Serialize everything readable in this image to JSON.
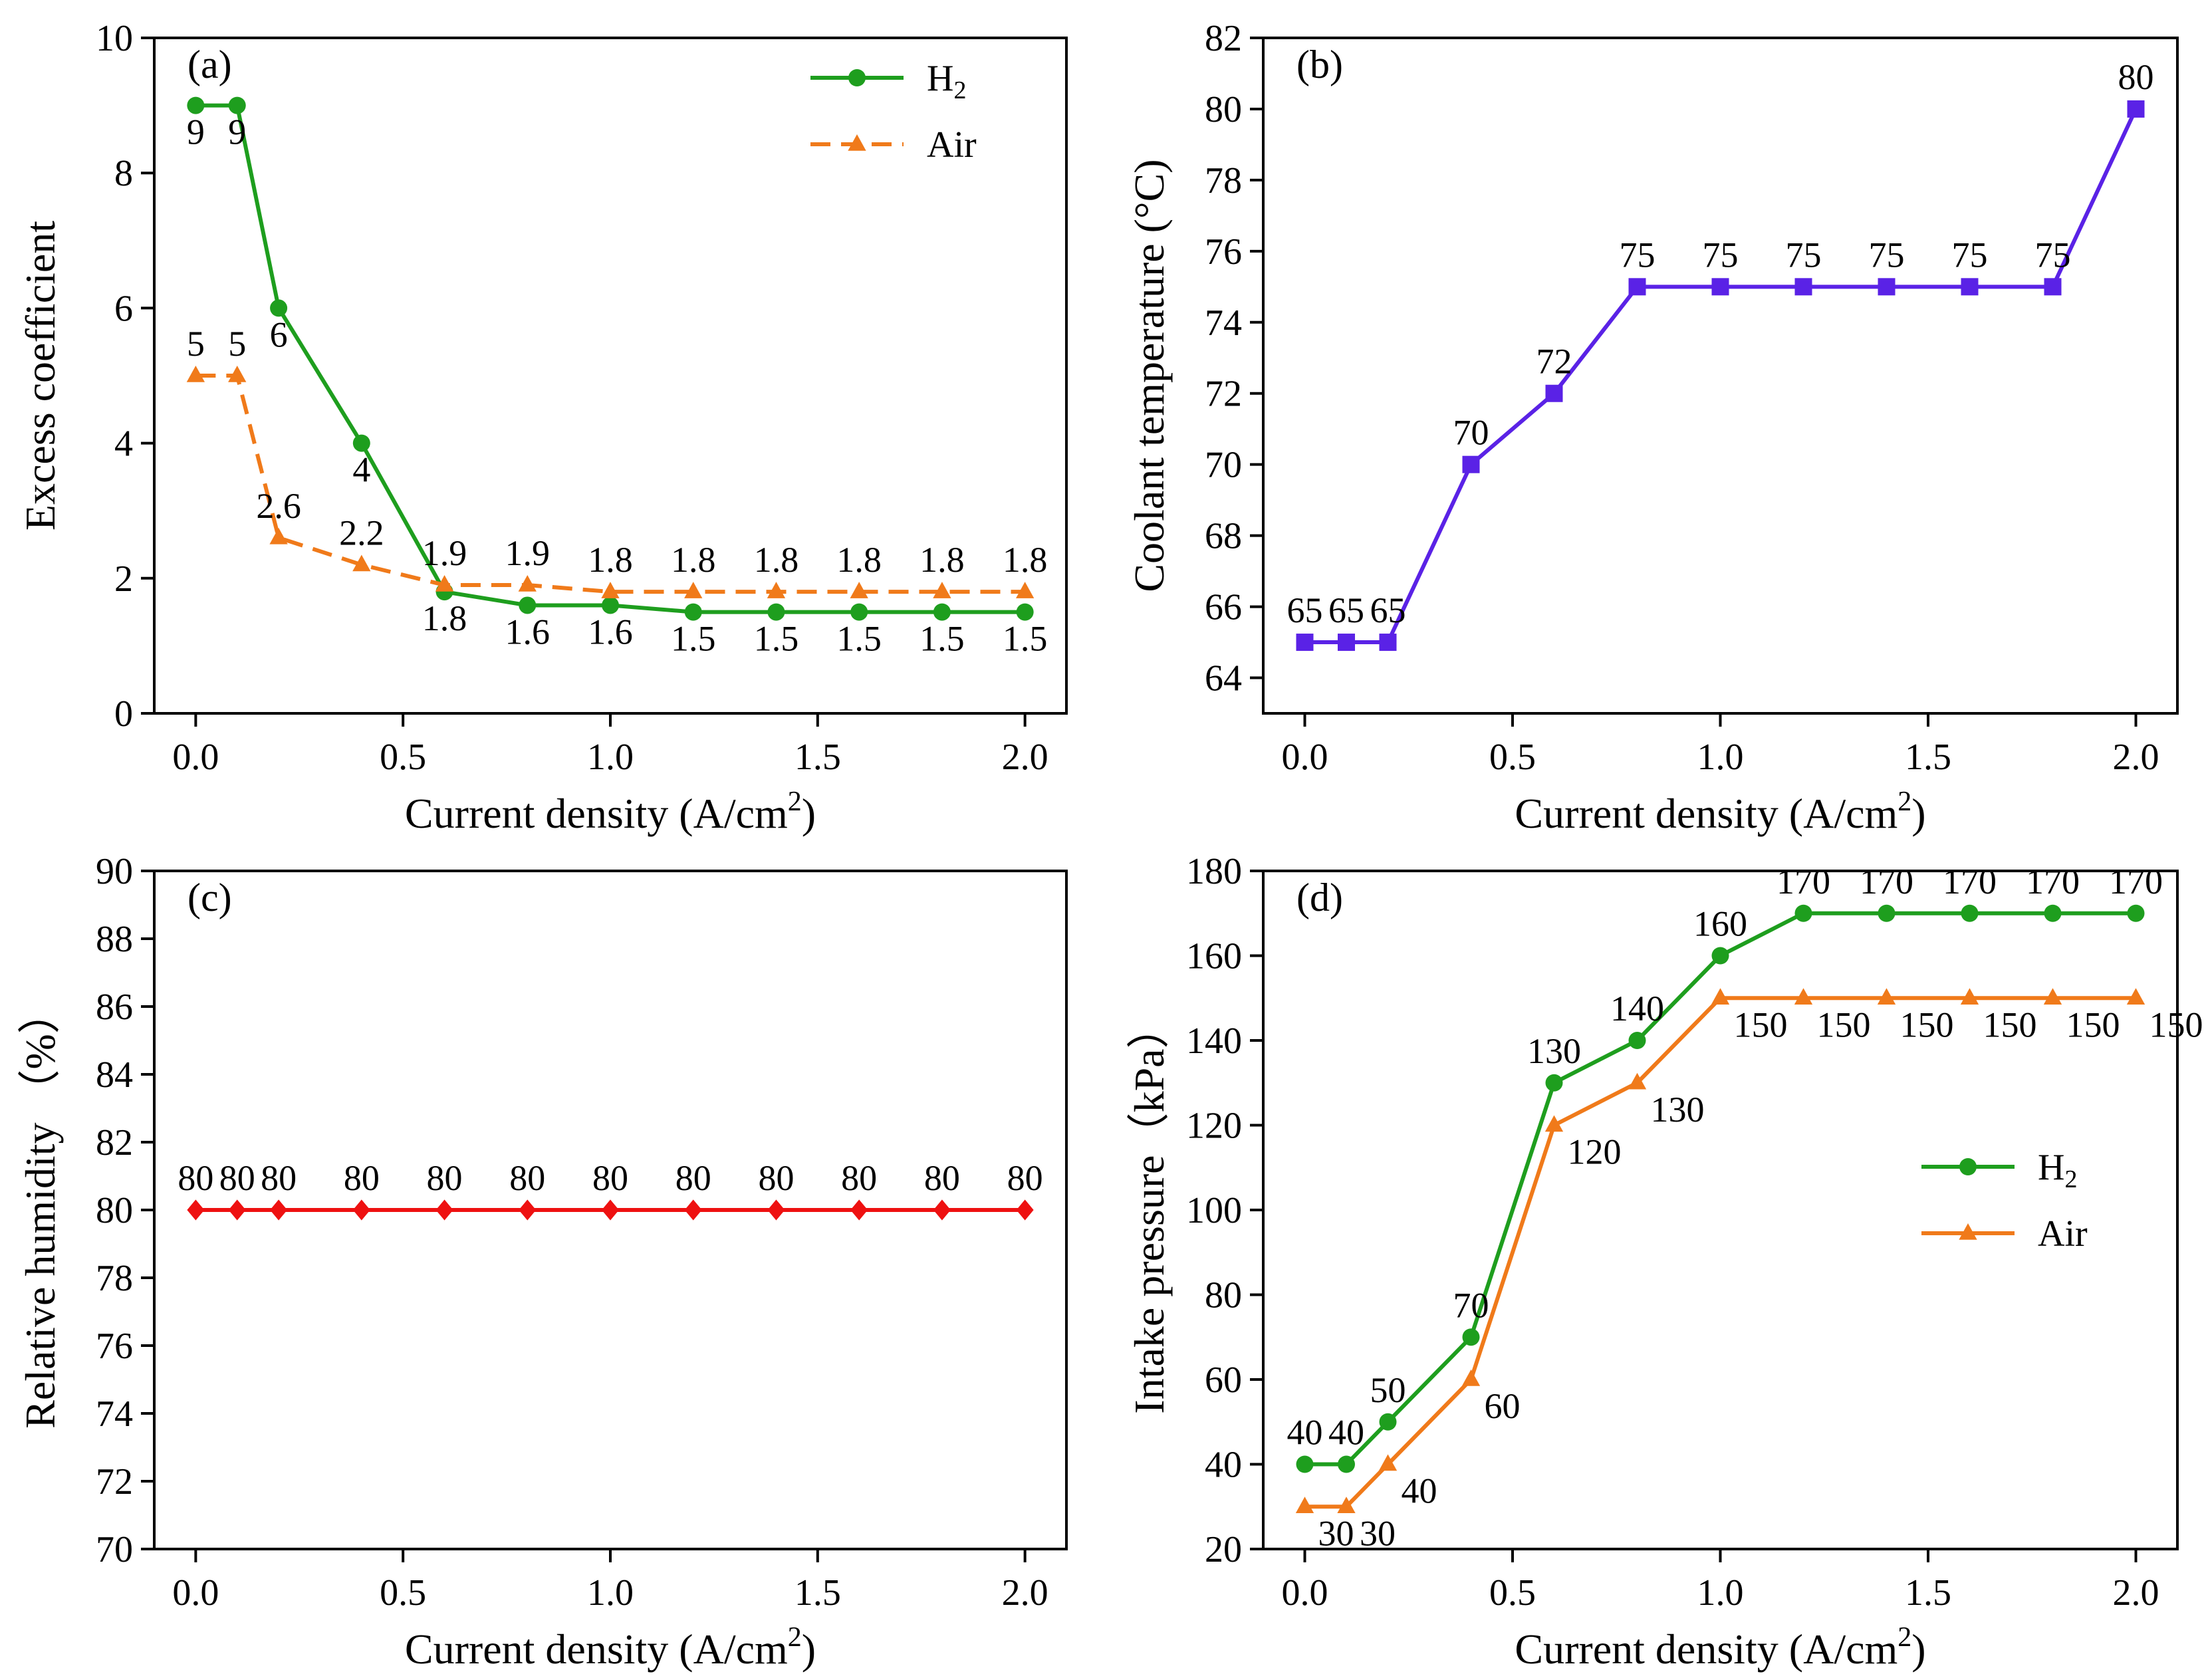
{
  "chart_data": [
    {
      "type": "line",
      "panel": "(a)",
      "xlabel": "Current density (A/cm",
      "xlabel_sup": "2",
      "xlabel_end": ")",
      "ylabel": "Excess coefficient",
      "xlim": [
        -0.1,
        2.1
      ],
      "ylim": [
        0,
        10
      ],
      "xticks": [
        "0.0",
        "0.5",
        "1.0",
        "1.5",
        "2.0"
      ],
      "yticks": [
        "0",
        "2",
        "4",
        "6",
        "8",
        "10"
      ],
      "x": [
        0,
        0.1,
        0.2,
        0.4,
        0.6,
        0.8,
        1.0,
        1.2,
        1.4,
        1.6,
        1.8,
        2.0
      ],
      "legend_position": "top-right",
      "series": [
        {
          "name": "H",
          "name_sub": "2",
          "color": "#1e9e1e",
          "marker": "circle",
          "dash": "solid",
          "values": [
            9,
            9,
            6,
            4,
            1.8,
            1.6,
            1.6,
            1.5,
            1.5,
            1.5,
            1.5,
            1.5
          ],
          "labels": [
            "9",
            "9",
            "6",
            "4",
            "1.8",
            "1.6",
            "1.6",
            "1.5",
            "1.5",
            "1.5",
            "1.5",
            "1.5"
          ],
          "label_position": "below"
        },
        {
          "name": "Air",
          "name_sub": "",
          "color": "#f07a1a",
          "marker": "triangle",
          "dash": "dashed",
          "values": [
            5,
            5,
            2.6,
            2.2,
            1.9,
            1.9,
            1.8,
            1.8,
            1.8,
            1.8,
            1.8,
            1.8
          ],
          "labels": [
            "5",
            "5",
            "2.6",
            "2.2",
            "1.9",
            "1.9",
            "1.8",
            "1.8",
            "1.8",
            "1.8",
            "1.8",
            "1.8"
          ],
          "label_position": "above"
        }
      ]
    },
    {
      "type": "line",
      "panel": "(b)",
      "xlabel": "Current density (A/cm",
      "xlabel_sup": "2",
      "xlabel_end": ")",
      "ylabel": "Coolant temperature (°C)",
      "xlim": [
        -0.1,
        2.1
      ],
      "ylim": [
        63,
        82
      ],
      "xticks": [
        "0.0",
        "0.5",
        "1.0",
        "1.5",
        "2.0"
      ],
      "yticks": [
        "64",
        "66",
        "68",
        "70",
        "72",
        "74",
        "76",
        "78",
        "80",
        "82"
      ],
      "x": [
        0,
        0.1,
        0.2,
        0.4,
        0.6,
        0.8,
        1.0,
        1.2,
        1.4,
        1.6,
        1.8,
        2.0
      ],
      "legend_position": "none",
      "series": [
        {
          "name": "Coolant temperature",
          "name_sub": "",
          "color": "#5a22e6",
          "marker": "square",
          "dash": "solid",
          "values": [
            65,
            65,
            65,
            70,
            72,
            75,
            75,
            75,
            75,
            75,
            75,
            80
          ],
          "labels": [
            "65",
            "65",
            "65",
            "70",
            "72",
            "75",
            "75",
            "75",
            "75",
            "75",
            "75",
            "80"
          ],
          "label_position": "above"
        }
      ]
    },
    {
      "type": "line",
      "panel": "(c)",
      "xlabel": "Current density (A/cm",
      "xlabel_sup": "2",
      "xlabel_end": ")",
      "ylabel": "Relative humidity （%）",
      "xlim": [
        -0.1,
        2.1
      ],
      "ylim": [
        70,
        90
      ],
      "xticks": [
        "0.0",
        "0.5",
        "1.0",
        "1.5",
        "2.0"
      ],
      "yticks": [
        "70",
        "72",
        "74",
        "76",
        "78",
        "80",
        "82",
        "84",
        "86",
        "88",
        "90"
      ],
      "x": [
        0,
        0.1,
        0.2,
        0.4,
        0.6,
        0.8,
        1.0,
        1.2,
        1.4,
        1.6,
        1.8,
        2.0
      ],
      "legend_position": "none",
      "series": [
        {
          "name": "Relative humidity",
          "name_sub": "",
          "color": "#ee1111",
          "marker": "diamond",
          "dash": "solid",
          "values": [
            80,
            80,
            80,
            80,
            80,
            80,
            80,
            80,
            80,
            80,
            80,
            80
          ],
          "labels": [
            "80",
            "80",
            "80",
            "80",
            "80",
            "80",
            "80",
            "80",
            "80",
            "80",
            "80",
            "80"
          ],
          "label_position": "above"
        }
      ]
    },
    {
      "type": "line",
      "panel": "(d)",
      "xlabel": "Current density (A/cm",
      "xlabel_sup": "2",
      "xlabel_end": ")",
      "ylabel": "Intake pressure（kPa）",
      "xlim": [
        -0.1,
        2.1
      ],
      "ylim": [
        20,
        180
      ],
      "xticks": [
        "0.0",
        "0.5",
        "1.0",
        "1.5",
        "2.0"
      ],
      "yticks": [
        "20",
        "40",
        "60",
        "80",
        "100",
        "120",
        "140",
        "160",
        "180"
      ],
      "x": [
        0,
        0.1,
        0.2,
        0.4,
        0.6,
        0.8,
        1.0,
        1.2,
        1.4,
        1.6,
        1.8,
        2.0
      ],
      "legend_position": "center-right",
      "series": [
        {
          "name": "H",
          "name_sub": "2",
          "color": "#1e9e1e",
          "marker": "circle",
          "dash": "solid",
          "values": [
            40,
            40,
            50,
            70,
            130,
            140,
            160,
            170,
            170,
            170,
            170,
            170
          ],
          "labels": [
            "40",
            "40",
            "50",
            "70",
            "130",
            "140",
            "160",
            "170",
            "170",
            "170",
            "170",
            "170"
          ],
          "label_position": "above"
        },
        {
          "name": "Air",
          "name_sub": "",
          "color": "#f07a1a",
          "marker": "triangle",
          "dash": "solid",
          "values": [
            30,
            30,
            40,
            60,
            120,
            130,
            150,
            150,
            150,
            150,
            150,
            150
          ],
          "labels": [
            "30",
            "30",
            "40",
            "60",
            "120",
            "130",
            "150",
            "150",
            "150",
            "150",
            "150",
            "150"
          ],
          "label_position": "below-right"
        }
      ]
    }
  ]
}
